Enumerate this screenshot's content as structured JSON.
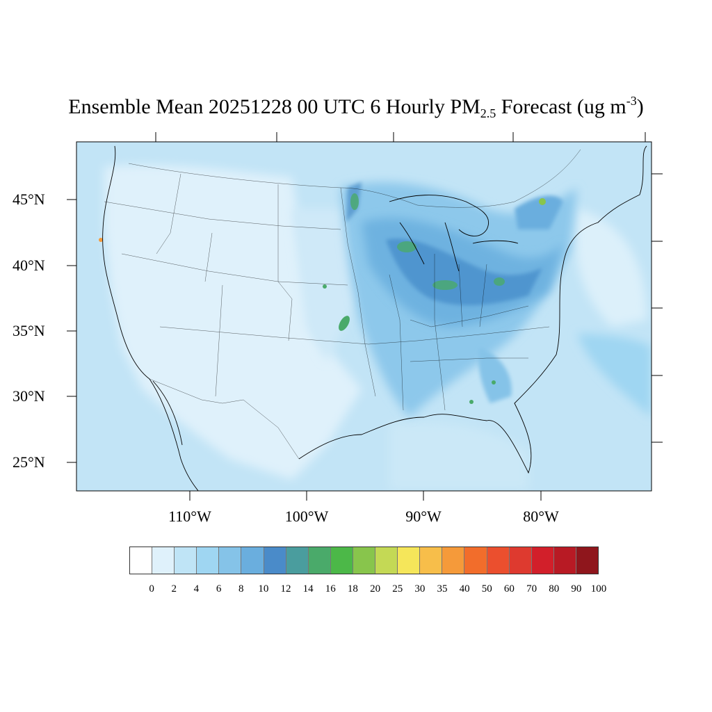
{
  "title": {
    "prefix": "Ensemble Mean 20251228 00 UTC 6 Hourly PM",
    "subscript": "2.5",
    "middle": " Forecast (ug m",
    "superscript": "-3",
    "suffix": ")"
  },
  "lat_labels": [
    "45°N",
    "40°N",
    "35°N",
    "30°N",
    "25°N"
  ],
  "lon_labels": [
    "110°W",
    "100°W",
    "90°W",
    "80°W"
  ],
  "colorbar": {
    "tick_labels": [
      "0",
      "2",
      "4",
      "6",
      "8",
      "10",
      "12",
      "14",
      "16",
      "18",
      "20",
      "25",
      "30",
      "35",
      "40",
      "50",
      "60",
      "70",
      "80",
      "90",
      "100"
    ],
    "colors": [
      "#ffffff",
      "#dff1fb",
      "#bfe4f6",
      "#9fd6f2",
      "#85c3e8",
      "#6aaede",
      "#4a8bc9",
      "#4a9d9e",
      "#4aaa6a",
      "#4cb848",
      "#88c54c",
      "#c4d955",
      "#f5e65a",
      "#f7be4a",
      "#f59a3a",
      "#f26d2b",
      "#eb4f2e",
      "#de3a2f",
      "#d21f2a",
      "#b81a24",
      "#8f161c"
    ]
  }
}
